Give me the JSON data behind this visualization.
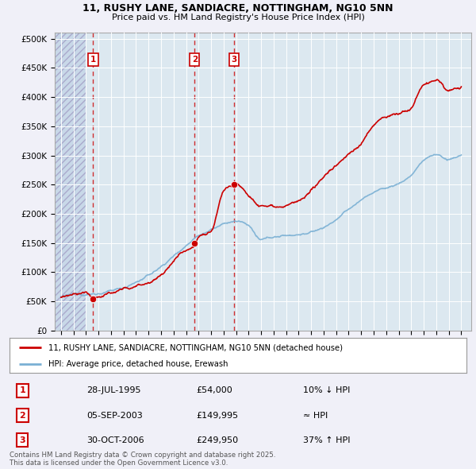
{
  "title_line1": "11, RUSHY LANE, SANDIACRE, NOTTINGHAM, NG10 5NN",
  "title_line2": "Price paid vs. HM Land Registry's House Price Index (HPI)",
  "transactions": [
    {
      "label": "1",
      "date_x": 1995.57,
      "price": 54000,
      "date_str": "28-JUL-1995",
      "price_str": "£54,000",
      "rel": "10% ↓ HPI"
    },
    {
      "label": "2",
      "date_x": 2003.68,
      "price": 149995,
      "date_str": "05-SEP-2003",
      "price_str": "£149,995",
      "rel": "≈ HPI"
    },
    {
      "label": "3",
      "date_x": 2006.83,
      "price": 249950,
      "date_str": "30-OCT-2006",
      "price_str": "£249,950",
      "rel": "37% ↑ HPI"
    }
  ],
  "ylim": [
    0,
    510000
  ],
  "yticks": [
    0,
    50000,
    100000,
    150000,
    200000,
    250000,
    300000,
    350000,
    400000,
    450000,
    500000
  ],
  "xlim": [
    1992.5,
    2025.8
  ],
  "xticks": [
    1993,
    1994,
    1995,
    1996,
    1997,
    1998,
    1999,
    2000,
    2001,
    2002,
    2003,
    2004,
    2005,
    2006,
    2007,
    2008,
    2009,
    2010,
    2011,
    2012,
    2013,
    2014,
    2015,
    2016,
    2017,
    2018,
    2019,
    2020,
    2021,
    2022,
    2023,
    2024,
    2025
  ],
  "property_color": "#cc0000",
  "hpi_color": "#7ab0d4",
  "legend_label1": "11, RUSHY LANE, SANDIACRE, NOTTINGHAM, NG10 5NN (detached house)",
  "legend_label2": "HPI: Average price, detached house, Erewash",
  "footer": "Contains HM Land Registry data © Crown copyright and database right 2025.\nThis data is licensed under the Open Government Licence v3.0.",
  "table_rows": [
    [
      "1",
      "28-JUL-1995",
      "£54,000",
      "10% ↓ HPI"
    ],
    [
      "2",
      "05-SEP-2003",
      "£149,995",
      "≈ HPI"
    ],
    [
      "3",
      "30-OCT-2006",
      "£249,950",
      "37% ↑ HPI"
    ]
  ],
  "background_color": "#f0f0f8",
  "plot_bg_color": "#dce8f0",
  "hatch_end_year": 1995.0
}
